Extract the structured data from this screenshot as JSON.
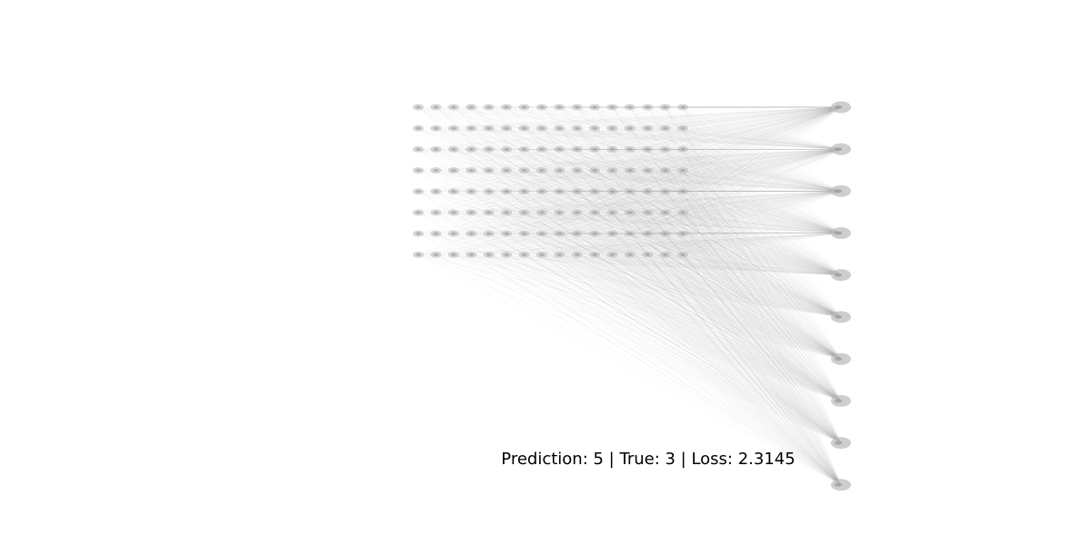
{
  "caption": "Prediction: 5 | True: 3 | Loss: 2.3145",
  "network": {
    "input_rows": 8,
    "input_cols": 16,
    "output_nodes": 10
  },
  "colors": {
    "node_fill": "#bdbdbd",
    "node_core": "#9a9a9a",
    "edge": "#8c8c8c",
    "caption": "#000000"
  }
}
